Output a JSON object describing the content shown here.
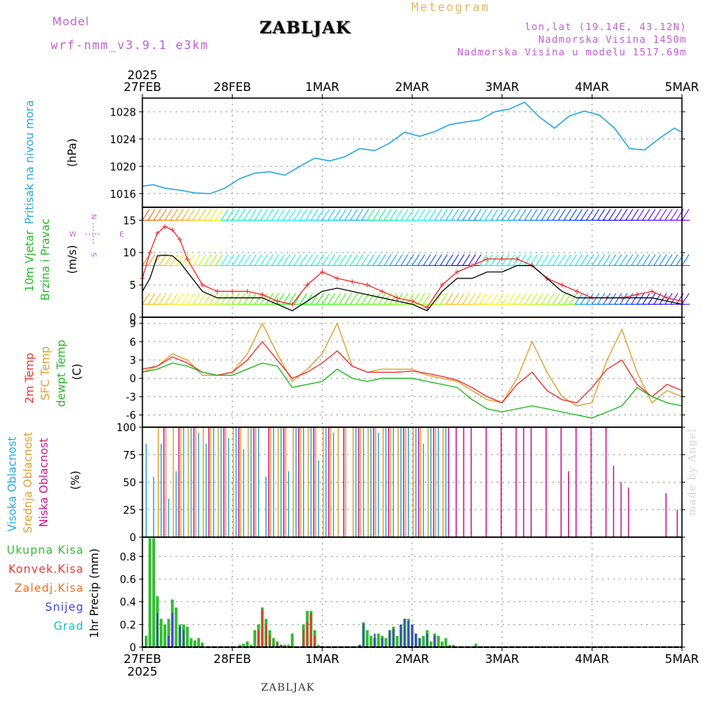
{
  "header": {
    "model_label": "Model",
    "model_name": "wrf-nmm_v3.9.1 e3km",
    "title": "ZABLJAK",
    "meteogram_label": "Meteogram",
    "lonlat": "lon,lat (19.14E, 43.12N)",
    "elevation": "Nadmorska Visina 1450m",
    "model_elevation": "Nadmorska Visina u modelu 1517.69m",
    "year_top": "2025",
    "year_bottom": "2025",
    "footer": "ZABLJAK",
    "watermark": "made by Angel"
  },
  "colors": {
    "pressure": "#2aa8e0",
    "wind_legend": "#22bb22",
    "temp2m": "#ee3333",
    "sfc_temp": "#e0a030",
    "dewpt": "#22bb22",
    "high_cloud": "#2aa8e0",
    "mid_cloud": "#e0a030",
    "low_cloud": "#cc1188",
    "total_precip": "#33bb33",
    "conv_precip": "#ee3333",
    "freezing": "#f07020",
    "snow": "#4444cc",
    "graupel": "#22bbbb",
    "wind_speed": "#000000",
    "wind_gust": "#ee3333",
    "compass": "#c05fd6",
    "grid": "#999999"
  },
  "chart_data": [
    {
      "type": "line",
      "panel": "pressure",
      "title": "Pritisak na nivou mora",
      "ylabel": "(hPa)",
      "x_ticks": [
        "27FEB",
        "28FEB",
        "1MAR",
        "2MAR",
        "3MAR",
        "4MAR",
        "5MAR"
      ],
      "xlim": [
        0,
        144
      ],
      "ylim": [
        1014,
        1030
      ],
      "y_ticks": [
        1016,
        1020,
        1024,
        1028
      ],
      "series": [
        {
          "name": "MSLP",
          "x": [
            0,
            3,
            6,
            10,
            14,
            18,
            22,
            26,
            30,
            34,
            38,
            42,
            46,
            50,
            54,
            58,
            62,
            66,
            70,
            74,
            78,
            82,
            86,
            90,
            94,
            98,
            102,
            106,
            110,
            114,
            118,
            122,
            126,
            130,
            134,
            138,
            142,
            144
          ],
          "values": [
            1017.1,
            1017.3,
            1016.8,
            1016.5,
            1016.1,
            1016.0,
            1016.8,
            1018.2,
            1019.0,
            1019.2,
            1018.7,
            1020.0,
            1021.2,
            1020.8,
            1021.4,
            1022.6,
            1022.3,
            1023.4,
            1025.0,
            1024.4,
            1025.1,
            1026.1,
            1026.5,
            1026.8,
            1028.0,
            1028.4,
            1029.4,
            1027.2,
            1025.6,
            1027.4,
            1028.1,
            1027.5,
            1025.6,
            1022.6,
            1022.4,
            1024.1,
            1025.6,
            1025.0
          ]
        }
      ]
    },
    {
      "type": "line",
      "panel": "wind",
      "title": "10m Vjetar Brzina i Pravac",
      "ylabel": "(m/s)",
      "xlim": [
        0,
        144
      ],
      "ylim": [
        0,
        17
      ],
      "y_ticks": [
        0,
        5,
        10,
        15
      ],
      "compass": {
        "north": "N",
        "south": "S",
        "east": "E",
        "west": "W"
      },
      "barb_rows": [
        2,
        8,
        15
      ],
      "series": [
        {
          "name": "speed",
          "x": [
            0,
            2,
            4,
            6,
            8,
            10,
            12,
            16,
            20,
            24,
            28,
            32,
            36,
            40,
            44,
            48,
            52,
            56,
            60,
            64,
            68,
            72,
            76,
            80,
            84,
            88,
            92,
            96,
            100,
            104,
            108,
            112,
            116,
            120,
            124,
            128,
            132,
            136,
            140,
            144
          ],
          "values": [
            4,
            6,
            9.5,
            9.6,
            9.5,
            8.5,
            7,
            4,
            3,
            3,
            3,
            3,
            2,
            1,
            2.5,
            4,
            4.5,
            4,
            3.5,
            3,
            2.5,
            2,
            1,
            4,
            6,
            6,
            7,
            7,
            8,
            8,
            6,
            4,
            3,
            3,
            3,
            3,
            3,
            3,
            2.5,
            2
          ]
        },
        {
          "name": "gust",
          "x": [
            0,
            2,
            4,
            6,
            8,
            10,
            12,
            16,
            20,
            24,
            28,
            32,
            36,
            40,
            44,
            48,
            52,
            56,
            60,
            64,
            68,
            72,
            76,
            80,
            84,
            88,
            92,
            96,
            100,
            104,
            108,
            112,
            116,
            120,
            124,
            128,
            132,
            136,
            140,
            144
          ],
          "values": [
            6,
            10,
            13,
            14,
            13.5,
            12,
            9,
            5,
            4,
            4,
            4,
            3.5,
            2.5,
            2,
            5,
            7,
            6,
            5.5,
            5,
            4,
            3,
            2.5,
            1.5,
            5,
            7,
            8,
            9,
            9,
            9,
            8,
            6,
            5,
            4,
            3,
            3,
            3,
            3.5,
            4,
            3,
            2.5
          ]
        }
      ]
    },
    {
      "type": "line",
      "panel": "temperature",
      "legend": [
        "2m Temp",
        "SFC Temp",
        "dewpt Temp"
      ],
      "ylabel": "(C)",
      "xlim": [
        0,
        144
      ],
      "ylim": [
        -8,
        10
      ],
      "y_ticks": [
        -6,
        -3,
        0,
        3,
        6,
        9
      ],
      "series": [
        {
          "name": "2m Temp",
          "x": [
            0,
            4,
            8,
            12,
            16,
            20,
            24,
            28,
            32,
            36,
            40,
            44,
            48,
            52,
            56,
            60,
            64,
            68,
            72,
            76,
            80,
            84,
            88,
            92,
            96,
            100,
            104,
            108,
            112,
            116,
            120,
            124,
            128,
            132,
            136,
            140,
            144
          ],
          "values": [
            1.5,
            2,
            3.5,
            2.5,
            1,
            0.5,
            1,
            3,
            6,
            3,
            0,
            1,
            2.5,
            4.5,
            2,
            1,
            1,
            1,
            1.2,
            0.8,
            0.3,
            -0.3,
            -1.5,
            -3,
            -4,
            -1,
            1,
            -2,
            -3.5,
            -4,
            -1.5,
            1.5,
            3,
            -1,
            -3,
            -1,
            -2
          ]
        },
        {
          "name": "SFC Temp",
          "x": [
            0,
            4,
            8,
            12,
            16,
            20,
            24,
            28,
            32,
            36,
            40,
            44,
            48,
            52,
            56,
            60,
            64,
            68,
            72,
            76,
            80,
            84,
            88,
            92,
            96,
            100,
            104,
            108,
            112,
            116,
            120,
            124,
            128,
            132,
            136,
            140,
            144
          ],
          "values": [
            1,
            2,
            4,
            3,
            0.5,
            0.5,
            1,
            4,
            9,
            4,
            -0.5,
            1.5,
            4,
            9,
            2,
            1,
            1.5,
            1.5,
            1.5,
            0.5,
            0,
            -0.5,
            -2,
            -3.5,
            -4,
            0,
            6,
            1,
            -3,
            -4.5,
            -4,
            3,
            8,
            1,
            -4,
            -2,
            -3
          ]
        },
        {
          "name": "dewpt Temp",
          "x": [
            0,
            4,
            8,
            12,
            16,
            20,
            24,
            28,
            32,
            36,
            40,
            44,
            48,
            52,
            56,
            60,
            64,
            68,
            72,
            76,
            80,
            84,
            88,
            92,
            96,
            100,
            104,
            108,
            112,
            116,
            120,
            124,
            128,
            132,
            136,
            140,
            144
          ],
          "values": [
            1,
            1.5,
            2.5,
            2,
            1,
            0.5,
            0.5,
            1.5,
            2.5,
            2,
            -1.5,
            -1,
            -0.5,
            1.5,
            0,
            -0.5,
            0,
            0,
            0,
            -0.5,
            -1,
            -1.5,
            -3.5,
            -5,
            -5.5,
            -5,
            -4.5,
            -5,
            -5.5,
            -6,
            -6.5,
            -5.5,
            -4.5,
            -1.5,
            -3,
            -4,
            -4.5
          ]
        }
      ]
    },
    {
      "type": "bar",
      "panel": "cloud",
      "legend": [
        "Visoka Oblacnost",
        "Srednja Oblacnost",
        "Niska Oblacnost"
      ],
      "ylabel": "(%)",
      "xlim": [
        0,
        144
      ],
      "ylim": [
        0,
        100
      ],
      "y_ticks": [
        0,
        25,
        50,
        75,
        100
      ],
      "series": [
        {
          "name": "Visoka",
          "x": [
            1,
            3,
            5,
            7,
            9,
            11,
            13,
            15,
            17,
            19,
            21,
            23,
            25,
            27,
            29,
            31,
            33,
            35,
            37,
            39,
            41,
            43,
            45,
            47,
            49,
            51,
            57,
            59,
            61,
            63,
            65,
            67,
            69,
            71,
            73,
            75,
            77,
            79,
            81
          ],
          "values": [
            85,
            55,
            85,
            35,
            60,
            100,
            100,
            95,
            85,
            100,
            100,
            90,
            100,
            80,
            100,
            100,
            55,
            100,
            100,
            60,
            100,
            100,
            100,
            70,
            100,
            95,
            100,
            100,
            100,
            95,
            100,
            100,
            100,
            100,
            100,
            85,
            100,
            100,
            100
          ]
        },
        {
          "name": "Srednja",
          "x": [
            2,
            4,
            6,
            8,
            10,
            12,
            14,
            16,
            18,
            20,
            22,
            24,
            26,
            28,
            30,
            32,
            34,
            36,
            38,
            40,
            42,
            44,
            46,
            48,
            50,
            52,
            54,
            56,
            58,
            60,
            62,
            64,
            66,
            68,
            70,
            72,
            74,
            76,
            78,
            80
          ],
          "values": [
            0,
            100,
            100,
            100,
            100,
            100,
            100,
            100,
            100,
            100,
            100,
            100,
            100,
            100,
            100,
            0,
            100,
            100,
            100,
            100,
            100,
            100,
            100,
            100,
            100,
            100,
            100,
            100,
            100,
            100,
            100,
            100,
            100,
            100,
            100,
            100,
            100,
            100,
            100,
            100
          ]
        },
        {
          "name": "Niska",
          "x": [
            2,
            6,
            10,
            14,
            18,
            22,
            26,
            30,
            34,
            38,
            42,
            46,
            50,
            54,
            58,
            62,
            66,
            70,
            74,
            78,
            82,
            84,
            86,
            88,
            92,
            96,
            100,
            102,
            104,
            108,
            112,
            114,
            116,
            120,
            124,
            126,
            128,
            130,
            140,
            143
          ],
          "values": [
            0,
            100,
            100,
            100,
            100,
            100,
            100,
            100,
            100,
            100,
            100,
            100,
            100,
            100,
            100,
            100,
            100,
            100,
            100,
            100,
            100,
            100,
            100,
            100,
            100,
            100,
            100,
            100,
            100,
            100,
            100,
            60,
            100,
            100,
            100,
            65,
            50,
            45,
            40,
            25
          ]
        }
      ]
    },
    {
      "type": "bar",
      "panel": "precip",
      "legend": [
        "Ukupna Kisa",
        "Konvek.Kisa",
        "Zaledj.Kisa",
        "Snijeg",
        "Grad"
      ],
      "ylabel": "1hr Precip (mm)",
      "xlim": [
        0,
        144
      ],
      "ylim": [
        0,
        0.97
      ],
      "y_ticks": [
        0,
        0.2,
        0.4,
        0.6,
        0.8
      ],
      "series": [
        {
          "name": "Ukupna Kisa",
          "x": [
            1,
            2,
            3,
            4,
            5,
            6,
            7,
            8,
            9,
            10,
            11,
            12,
            13,
            14,
            15,
            16,
            26,
            27,
            28,
            29,
            30,
            31,
            32,
            33,
            34,
            35,
            36,
            37,
            38,
            39,
            40,
            43,
            44,
            45,
            46,
            47,
            48,
            58,
            59,
            60,
            61,
            62,
            63,
            64,
            65,
            66,
            67,
            68,
            69,
            70,
            71,
            72,
            73,
            74,
            75,
            76,
            77,
            78,
            79,
            80,
            81,
            82,
            83,
            89
          ],
          "values": [
            0.1,
            0.96,
            0.96,
            0.45,
            0.25,
            0.2,
            0.25,
            0.42,
            0.35,
            0.2,
            0.2,
            0.18,
            0.08,
            0.06,
            0.08,
            0.04,
            0.02,
            0.03,
            0.05,
            0.02,
            0.15,
            0.2,
            0.35,
            0.25,
            0.15,
            0.08,
            0.05,
            0.02,
            0.02,
            0.02,
            0.12,
            0.2,
            0.32,
            0.32,
            0.15,
            0.02,
            0.01,
            0.02,
            0.22,
            0.15,
            0.1,
            0.08,
            0.12,
            0.1,
            0.08,
            0.15,
            0.18,
            0.1,
            0.2,
            0.25,
            0.25,
            0.2,
            0.12,
            0.08,
            0.1,
            0.15,
            0.05,
            0.12,
            0.1,
            0.05,
            0.08,
            0.02,
            0.02,
            0.03
          ]
        },
        {
          "name": "Konvek.Kisa",
          "x": [
            31,
            32,
            33,
            34,
            36,
            43,
            44,
            45,
            46
          ],
          "values": [
            0.15,
            0.33,
            0.2,
            0.1,
            0.04,
            0.15,
            0.22,
            0.3,
            0.1
          ]
        },
        {
          "name": "Snijeg",
          "x": [
            4,
            7,
            8,
            10,
            11,
            35,
            37,
            58,
            59,
            62,
            64,
            66,
            67,
            69,
            70,
            71,
            72,
            73,
            74,
            76,
            78
          ],
          "values": [
            0.3,
            0.1,
            0.3,
            0.18,
            0.15,
            0.02,
            0.02,
            0.02,
            0.2,
            0.12,
            0.08,
            0.15,
            0.16,
            0.2,
            0.25,
            0.23,
            0.2,
            0.12,
            0.08,
            0.12,
            0.1
          ]
        }
      ]
    }
  ]
}
